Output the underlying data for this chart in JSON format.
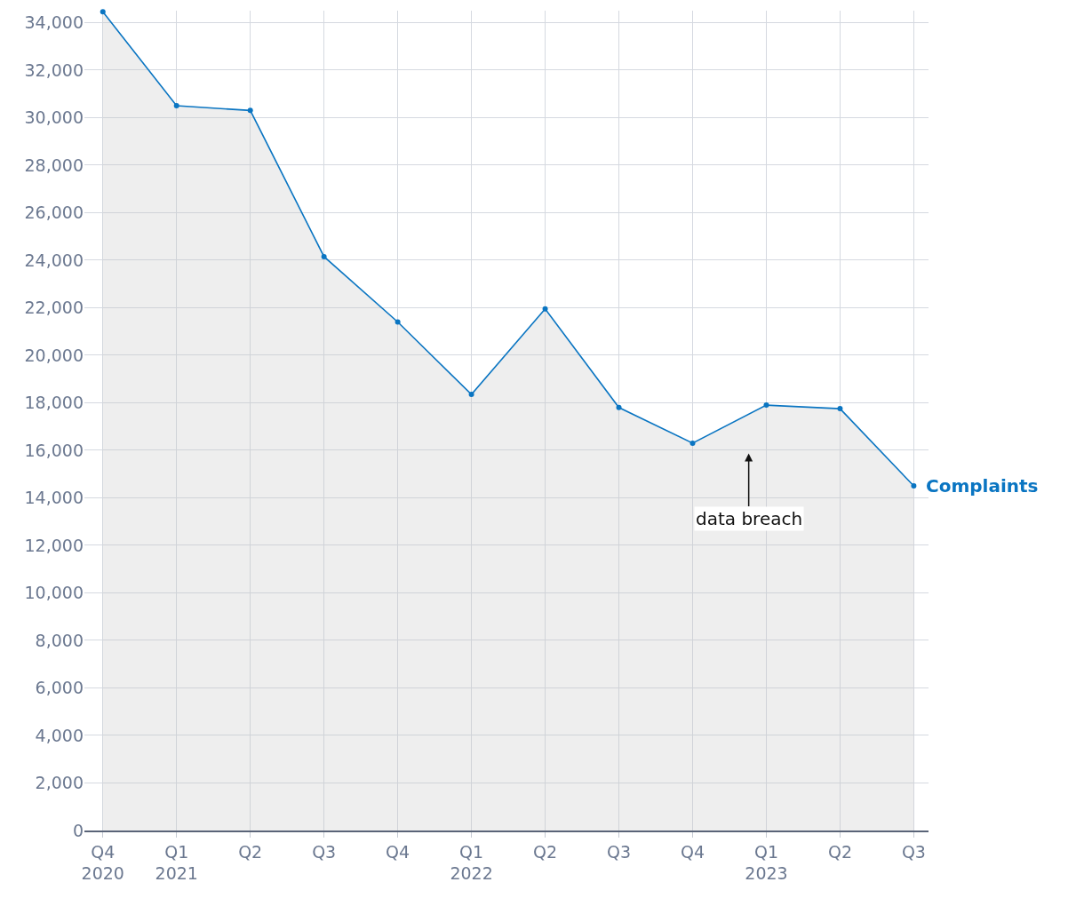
{
  "chart_data": {
    "type": "area",
    "categories": [
      "Q4\n2020",
      "Q1\n2021",
      "Q2",
      "Q3",
      "Q4",
      "Q1\n2022",
      "Q2",
      "Q3",
      "Q4",
      "Q1\n2023",
      "Q2",
      "Q3"
    ],
    "series": [
      {
        "name": "Complaints",
        "color": "#0a75c2",
        "values": [
          34450,
          30500,
          30300,
          24150,
          21400,
          18350,
          21950,
          17800,
          16300,
          17900,
          17750,
          14500
        ]
      }
    ],
    "ylim": [
      0,
      34500
    ],
    "yticks": [
      0,
      {
        "value": 2000,
        "label": "2,000"
      },
      {
        "value": 4000,
        "label": "4,000"
      },
      {
        "value": 6000,
        "label": "6,000"
      },
      {
        "value": 8000,
        "label": "8,000"
      },
      {
        "value": 10000,
        "label": "10,000"
      },
      {
        "value": 12000,
        "label": "12,000"
      },
      {
        "value": 14000,
        "label": "14,000"
      },
      {
        "value": 16000,
        "label": "16,000"
      },
      {
        "value": 18000,
        "label": "18,000"
      },
      {
        "value": 20000,
        "label": "20,000"
      },
      {
        "value": 22000,
        "label": "22,000"
      },
      {
        "value": 24000,
        "label": "24,000"
      },
      {
        "value": 26000,
        "label": "26,000"
      },
      {
        "value": 28000,
        "label": "28,000"
      },
      {
        "value": 30000,
        "label": "30,000"
      },
      {
        "value": 32000,
        "label": "32,000"
      },
      {
        "value": 34000,
        "label": "34,000"
      }
    ],
    "annotations": [
      "data breach"
    ],
    "grid": true,
    "legend": false,
    "marker": "circle",
    "line_style": "solid"
  }
}
